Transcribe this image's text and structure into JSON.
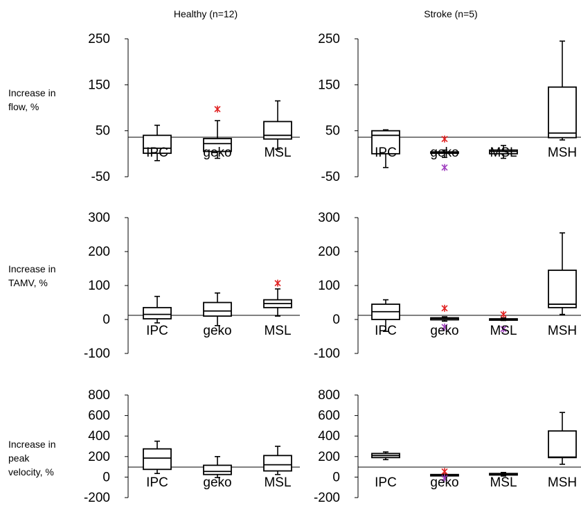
{
  "column_titles": [
    "Healthy (n=12)",
    "Stroke (n=5)"
  ],
  "row_labels": [
    [
      "Increase in",
      "flow, %"
    ],
    [
      "Increase in",
      "TAMV, %"
    ],
    [
      "Increase in",
      "peak",
      "velocity, %"
    ]
  ],
  "colors": {
    "box": "#000000",
    "outlier_red": "#e02020",
    "outlier_purple": "#a040c0"
  },
  "chart_data": [
    {
      "type": "box",
      "group": "Healthy (n=12)",
      "ylabel": "Increase in flow, %",
      "yticks": [
        250,
        150,
        50,
        -50
      ],
      "ylim": [
        -50,
        250
      ],
      "boxes": [
        {
          "label": "IPC",
          "min": -15,
          "q1": 1,
          "median": 12,
          "q3": 40,
          "max": 62
        },
        {
          "label": "geko",
          "min": -10,
          "q1": 5,
          "median": 22,
          "q3": 33,
          "max": 72,
          "outliers": [
            {
              "value": 97,
              "color": "red"
            }
          ]
        },
        {
          "label": "MSL",
          "min": 10,
          "q1": 32,
          "median": 40,
          "q3": 70,
          "max": 115
        }
      ]
    },
    {
      "type": "box",
      "group": "Stroke (n=5)",
      "ylabel": "Increase in flow, %",
      "yticks": [
        250,
        150,
        50,
        -50
      ],
      "ylim": [
        -50,
        250
      ],
      "boxes": [
        {
          "label": "IPC",
          "min": -30,
          "q1": 0,
          "median": 40,
          "q3": 50,
          "max": 52
        },
        {
          "label": "geko",
          "min": -8,
          "q1": 1,
          "median": 2,
          "q3": 4,
          "max": 8,
          "outliers": [
            {
              "value": 32,
              "color": "red"
            },
            {
              "value": -30,
              "color": "purple"
            }
          ]
        },
        {
          "label": "MSL",
          "min": -10,
          "q1": 0,
          "median": 5,
          "q3": 8,
          "max": 18
        },
        {
          "label": "MSH",
          "min": 30,
          "q1": 35,
          "median": 45,
          "q3": 145,
          "max": 245
        }
      ]
    },
    {
      "type": "box",
      "group": "Healthy (n=12)",
      "ylabel": "Increase in TAMV, %",
      "yticks": [
        300,
        200,
        100,
        0,
        -100
      ],
      "ylim": [
        -100,
        300
      ],
      "boxes": [
        {
          "label": "IPC",
          "min": -10,
          "q1": 2,
          "median": 15,
          "q3": 35,
          "max": 68
        },
        {
          "label": "geko",
          "min": -18,
          "q1": 10,
          "median": 25,
          "q3": 50,
          "max": 78
        },
        {
          "label": "MSL",
          "min": 10,
          "q1": 35,
          "median": 47,
          "q3": 58,
          "max": 90,
          "outliers": [
            {
              "value": 107,
              "color": "red"
            }
          ]
        }
      ]
    },
    {
      "type": "box",
      "group": "Stroke (n=5)",
      "ylabel": "Increase in TAMV, %",
      "yticks": [
        300,
        200,
        100,
        0,
        -100
      ],
      "ylim": [
        -100,
        300
      ],
      "boxes": [
        {
          "label": "IPC",
          "min": -35,
          "q1": 0,
          "median": 23,
          "q3": 45,
          "max": 58
        },
        {
          "label": "geko",
          "min": -5,
          "q1": -1,
          "median": 3,
          "q3": 5,
          "max": 8,
          "outliers": [
            {
              "value": 33,
              "color": "red"
            },
            {
              "value": -22,
              "color": "purple"
            }
          ]
        },
        {
          "label": "MSL",
          "min": -3,
          "q1": -1,
          "median": 1,
          "q3": 2,
          "max": 5,
          "outliers": [
            {
              "value": 15,
              "color": "red"
            },
            {
              "value": -28,
              "color": "purple"
            }
          ]
        },
        {
          "label": "MSH",
          "min": 15,
          "q1": 35,
          "median": 45,
          "q3": 145,
          "max": 255
        }
      ]
    },
    {
      "type": "box",
      "group": "Healthy (n=12)",
      "ylabel": "Increase in peak velocity, %",
      "yticks": [
        800,
        600,
        400,
        200,
        0,
        -200
      ],
      "ylim": [
        -200,
        800
      ],
      "boxes": [
        {
          "label": "IPC",
          "min": 35,
          "q1": 75,
          "median": 185,
          "q3": 275,
          "max": 350
        },
        {
          "label": "geko",
          "min": -5,
          "q1": 25,
          "median": 55,
          "q3": 115,
          "max": 200
        },
        {
          "label": "MSL",
          "min": 25,
          "q1": 60,
          "median": 120,
          "q3": 210,
          "max": 300
        }
      ]
    },
    {
      "type": "box",
      "group": "Stroke (n=5)",
      "ylabel": "Increase in peak velocity, %",
      "yticks": [
        800,
        600,
        400,
        200,
        0,
        -200
      ],
      "ylim": [
        -200,
        800
      ],
      "boxes": [
        {
          "label": "IPC",
          "min": 170,
          "q1": 190,
          "median": 210,
          "q3": 230,
          "max": 245
        },
        {
          "label": "geko",
          "min": 5,
          "q1": 15,
          "median": 20,
          "q3": 25,
          "max": 30,
          "outliers": [
            {
              "value": 55,
              "color": "red"
            },
            {
              "value": -10,
              "color": "purple"
            }
          ]
        },
        {
          "label": "MSL",
          "min": 10,
          "q1": 20,
          "median": 25,
          "q3": 35,
          "max": 45
        },
        {
          "label": "MSH",
          "min": 125,
          "q1": 190,
          "median": 195,
          "q3": 450,
          "max": 630
        }
      ]
    }
  ]
}
